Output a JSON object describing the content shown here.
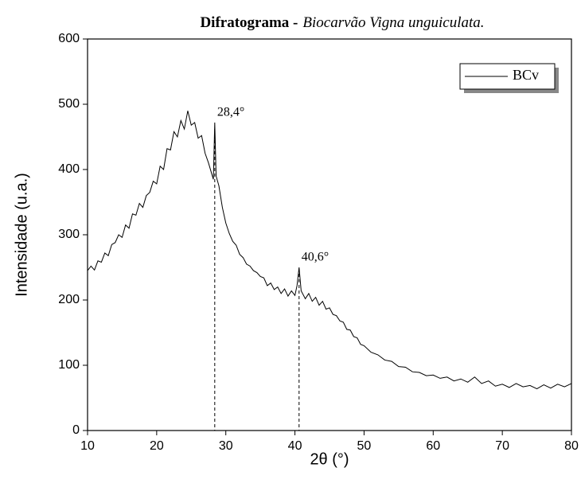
{
  "chart_data": {
    "type": "line",
    "title": "Difratograma -",
    "title_italic": "Biocarvão Vigna unguiculata.",
    "x_label": "2θ (°)",
    "y_label": "Intensidade (u.a.)",
    "xlim": [
      10,
      80
    ],
    "xticks": [
      10,
      20,
      30,
      40,
      50,
      60,
      70,
      80
    ],
    "ylim": [
      0,
      600
    ],
    "yticks": [
      0,
      100,
      200,
      300,
      400,
      500,
      600
    ],
    "legend": "upper right",
    "annotations": [
      {
        "label": "28,4°",
        "x": 28.4,
        "y": 472
      },
      {
        "label": "40,6°",
        "x": 40.6,
        "y": 250
      }
    ],
    "x": [
      10,
      10.5,
      11,
      11.5,
      12,
      12.5,
      13,
      13.5,
      14,
      14.5,
      15,
      15.5,
      16,
      16.5,
      17,
      17.5,
      18,
      18.5,
      19,
      19.5,
      20,
      20.5,
      21,
      21.5,
      22,
      22.5,
      23,
      23.5,
      24,
      24.5,
      25,
      25.5,
      26,
      26.5,
      27,
      27.5,
      28,
      28.2,
      28.4,
      28.6,
      29,
      29.5,
      30,
      30.5,
      31,
      31.5,
      32,
      32.5,
      33,
      33.5,
      34,
      34.5,
      35,
      35.5,
      36,
      36.5,
      37,
      37.5,
      38,
      38.5,
      39,
      39.5,
      40,
      40.3,
      40.6,
      40.9,
      41.5,
      42,
      42.5,
      43,
      43.5,
      44,
      44.5,
      45,
      45.5,
      46,
      46.5,
      47,
      47.5,
      48,
      48.5,
      49,
      49.5,
      50,
      51,
      52,
      53,
      54,
      55,
      56,
      57,
      58,
      59,
      60,
      61,
      62,
      63,
      64,
      65,
      66,
      67,
      68,
      69,
      70,
      71,
      72,
      73,
      74,
      75,
      76,
      77,
      78,
      79,
      80
    ],
    "series": [
      {
        "name": "BCv",
        "color": "#000000",
        "values": [
          245,
          252,
          246,
          260,
          258,
          272,
          268,
          285,
          288,
          300,
          296,
          315,
          310,
          332,
          330,
          348,
          342,
          360,
          365,
          382,
          378,
          405,
          400,
          432,
          430,
          458,
          450,
          475,
          462,
          490,
          468,
          472,
          448,
          452,
          425,
          410,
          392,
          385,
          472,
          390,
          375,
          342,
          318,
          302,
          290,
          284,
          270,
          265,
          255,
          252,
          245,
          242,
          236,
          234,
          222,
          226,
          216,
          220,
          210,
          217,
          206,
          214,
          207,
          222,
          250,
          214,
          202,
          210,
          198,
          204,
          192,
          198,
          186,
          188,
          178,
          176,
          168,
          166,
          155,
          154,
          144,
          142,
          132,
          130,
          120,
          116,
          108,
          106,
          98,
          97,
          90,
          89,
          84,
          85,
          80,
          82,
          76,
          79,
          74,
          82,
          72,
          76,
          68,
          71,
          66,
          72,
          67,
          69,
          64,
          70,
          65,
          71,
          67,
          72
        ]
      }
    ]
  }
}
